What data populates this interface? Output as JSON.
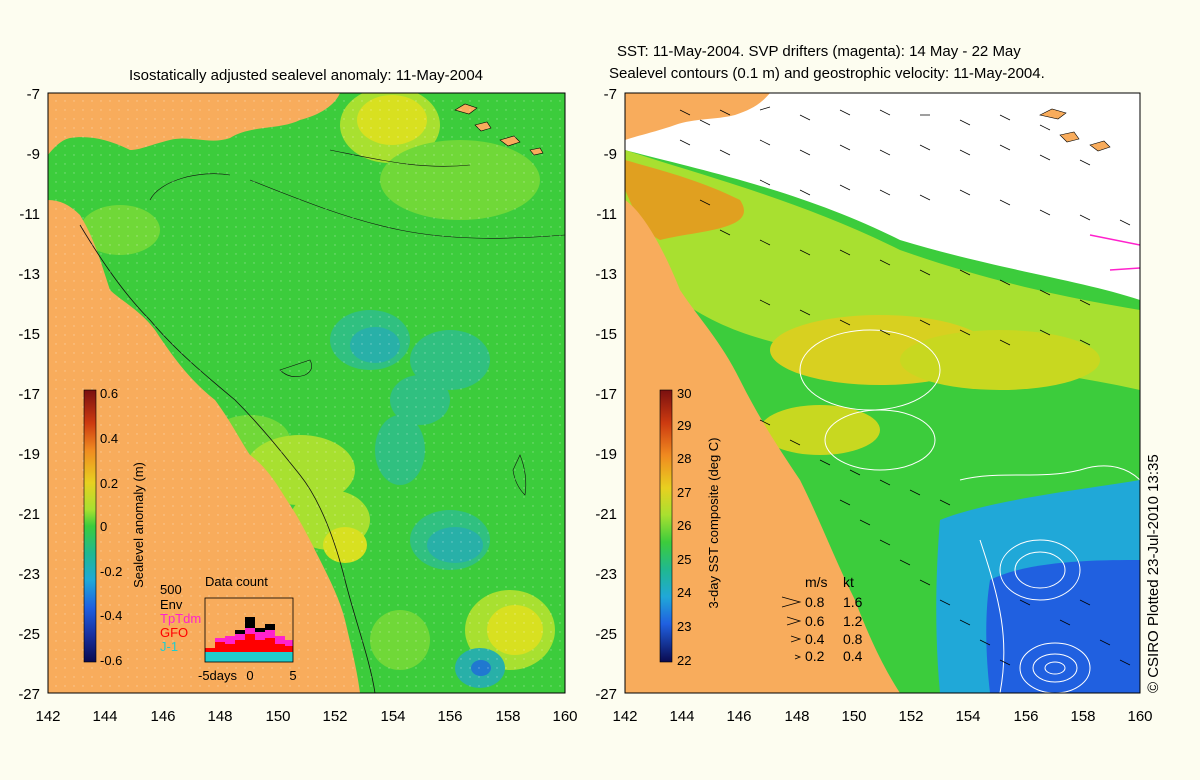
{
  "left_panel": {
    "title": "Isostatically adjusted sealevel anomaly: 11-May-2004",
    "y_ticks": [
      "-7",
      "-9",
      "-11",
      "-13",
      "-15",
      "-17",
      "-19",
      "-21",
      "-23",
      "-25",
      "-27"
    ],
    "x_ticks": [
      "142",
      "144",
      "146",
      "148",
      "150",
      "152",
      "154",
      "156",
      "158",
      "160"
    ],
    "colorbar": {
      "label": "Sealevel anomaly (m)",
      "ticks": [
        "0.6",
        "0.4",
        "0.2",
        "0",
        "-0.2",
        "-0.4",
        "-0.6"
      ]
    },
    "inset": {
      "title": "Data count",
      "max_label": "500",
      "legend": [
        {
          "name": "Env",
          "color": "#000000"
        },
        {
          "name": "TpTdm",
          "color": "#ff22cc"
        },
        {
          "name": "GFO",
          "color": "#ff0000"
        },
        {
          "name": "J-1",
          "color": "#22cccc"
        }
      ],
      "x_ticks": [
        "-5days",
        "0",
        "5"
      ]
    }
  },
  "right_panel": {
    "title_line1": "SST: 11-May-2004. SVP drifters (magenta): 14 May - 22 May",
    "title_line2": "Sealevel contours (0.1 m) and geostrophic velocity: 11-May-2004.",
    "y_ticks": [
      "-7",
      "-9",
      "-11",
      "-13",
      "-15",
      "-17",
      "-19",
      "-21",
      "-23",
      "-25",
      "-27"
    ],
    "x_ticks": [
      "142",
      "144",
      "146",
      "148",
      "150",
      "152",
      "154",
      "156",
      "158",
      "160"
    ],
    "colorbar": {
      "label": "3-day SST composite (deg C)",
      "ticks": [
        "30",
        "29",
        "28",
        "27",
        "26",
        "25",
        "24",
        "23",
        "22"
      ]
    },
    "velocity_legend": {
      "header_ms": "m/s",
      "header_kt": "kt",
      "rows": [
        {
          "ms": "0.8",
          "kt": "1.6"
        },
        {
          "ms": "0.6",
          "kt": "1.2"
        },
        {
          "ms": "0.4",
          "kt": "0.8"
        },
        {
          "ms": "0.2",
          "kt": "0.4"
        }
      ]
    }
  },
  "credit": "© CSIRO Plotted 23-Jul-2010 13:35",
  "colors": {
    "land": "#f8ac5c",
    "ocean_green": "#3ccc3c",
    "background": "#fdfdf0"
  }
}
